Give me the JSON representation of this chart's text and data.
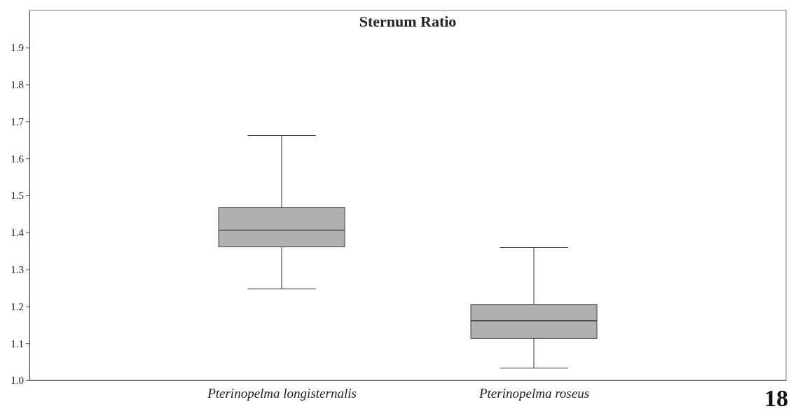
{
  "chart_data": {
    "type": "box",
    "title": "Sternum Ratio",
    "categories": [
      "Pterinopelma longisternalis",
      "Pterinopelma roseus"
    ],
    "boxes": [
      {
        "low": 1.247,
        "q1": 1.361,
        "median": 1.406,
        "q3": 1.467,
        "high": 1.662
      },
      {
        "low": 1.033,
        "q1": 1.113,
        "median": 1.161,
        "q3": 1.205,
        "high": 1.359
      }
    ],
    "color": "#b0b0b0",
    "ylim": [
      1.0,
      2.0
    ],
    "yticks": [
      {
        "value": 1.0,
        "label": "1.0"
      },
      1.1,
      1.2,
      1.3,
      1.4,
      1.5,
      1.6,
      1.7,
      1.8,
      1.9
    ],
    "grid": false,
    "annotations": [
      "18"
    ]
  }
}
